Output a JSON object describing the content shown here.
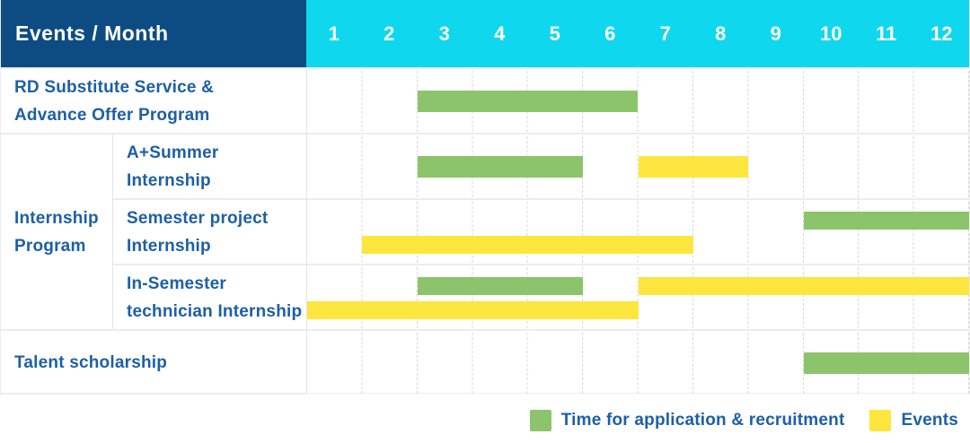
{
  "header": {
    "title": "Events / Month",
    "months": [
      "1",
      "2",
      "3",
      "4",
      "5",
      "6",
      "7",
      "8",
      "9",
      "10",
      "11",
      "12"
    ]
  },
  "colors": {
    "header_bg": "#0d4c82",
    "months_bg": "#0fd7ee",
    "application_green": "#8cc46b",
    "events_yellow": "#fde63e",
    "label_text": "#1d5fa6",
    "grid_line": "#d8d8d8",
    "row_border": "#ececec"
  },
  "group": {
    "label_lines": [
      "Internship",
      "Program"
    ]
  },
  "rows": [
    {
      "id": "rd-substitute-service",
      "in_group": false,
      "label_lines": [
        "RD Substitute Service &",
        "Advance Offer Program"
      ],
      "lanes": [
        [
          {
            "kind": "application",
            "start_month": 3,
            "end_month": 6
          }
        ]
      ]
    },
    {
      "id": "a-plus-summer-internship",
      "in_group": true,
      "label_lines": [
        "A+Summer",
        "Internship"
      ],
      "lanes": [
        [
          {
            "kind": "application",
            "start_month": 3,
            "end_month": 5
          },
          {
            "kind": "events",
            "start_month": 7,
            "end_month": 8
          }
        ]
      ]
    },
    {
      "id": "semester-project-internship",
      "in_group": true,
      "label_lines": [
        "Semester project",
        "Internship"
      ],
      "lanes": [
        [
          {
            "kind": "application",
            "start_month": 10,
            "end_month": 12
          }
        ],
        [
          {
            "kind": "events",
            "start_month": 2,
            "end_month": 7
          }
        ]
      ]
    },
    {
      "id": "in-semester-technician-internship",
      "in_group": true,
      "label_lines": [
        "In-Semester",
        "technician Internship"
      ],
      "lanes": [
        [
          {
            "kind": "application",
            "start_month": 3,
            "end_month": 5
          },
          {
            "kind": "events",
            "start_month": 7,
            "end_month": 12
          }
        ],
        [
          {
            "kind": "events",
            "start_month": 1,
            "end_month": 6
          }
        ]
      ]
    },
    {
      "id": "talent-scholarship",
      "in_group": false,
      "label_lines": [
        "Talent scholarship"
      ],
      "lanes": [
        [
          {
            "kind": "application",
            "start_month": 10,
            "end_month": 12
          }
        ]
      ]
    }
  ],
  "legend": {
    "items": [
      {
        "kind": "application",
        "label": "Time for application & recruitment"
      },
      {
        "kind": "events",
        "label": "Events"
      }
    ]
  },
  "chart_data": {
    "type": "bar",
    "subtype": "gantt-timeline",
    "title": "Events / Month",
    "x_axis": {
      "label": "Month",
      "ticks": [
        1,
        2,
        3,
        4,
        5,
        6,
        7,
        8,
        9,
        10,
        11,
        12
      ],
      "range": [
        1,
        12
      ]
    },
    "grid": true,
    "legend_position": "bottom-right",
    "legend": [
      {
        "name": "Time for application & recruitment",
        "color": "#8cc46b"
      },
      {
        "name": "Events",
        "color": "#fde63e"
      }
    ],
    "rows": [
      {
        "group": null,
        "label": "RD Substitute Service & Advance Offer Program",
        "segments": [
          {
            "series": "Time for application & recruitment",
            "start_month": 3,
            "end_month": 6
          }
        ]
      },
      {
        "group": "Internship Program",
        "label": "A+Summer Internship",
        "segments": [
          {
            "series": "Time for application & recruitment",
            "start_month": 3,
            "end_month": 5
          },
          {
            "series": "Events",
            "start_month": 7,
            "end_month": 8
          }
        ]
      },
      {
        "group": "Internship Program",
        "label": "Semester project Internship",
        "segments": [
          {
            "series": "Time for application & recruitment",
            "start_month": 10,
            "end_month": 12
          },
          {
            "series": "Events",
            "start_month": 2,
            "end_month": 7
          }
        ]
      },
      {
        "group": "Internship Program",
        "label": "In-Semester technician Internship",
        "segments": [
          {
            "series": "Time for application & recruitment",
            "start_month": 3,
            "end_month": 5
          },
          {
            "series": "Events",
            "start_month": 7,
            "end_month": 12
          },
          {
            "series": "Events",
            "start_month": 1,
            "end_month": 6
          }
        ]
      },
      {
        "group": null,
        "label": "Talent scholarship",
        "segments": [
          {
            "series": "Time for application & recruitment",
            "start_month": 10,
            "end_month": 12
          }
        ]
      }
    ]
  }
}
